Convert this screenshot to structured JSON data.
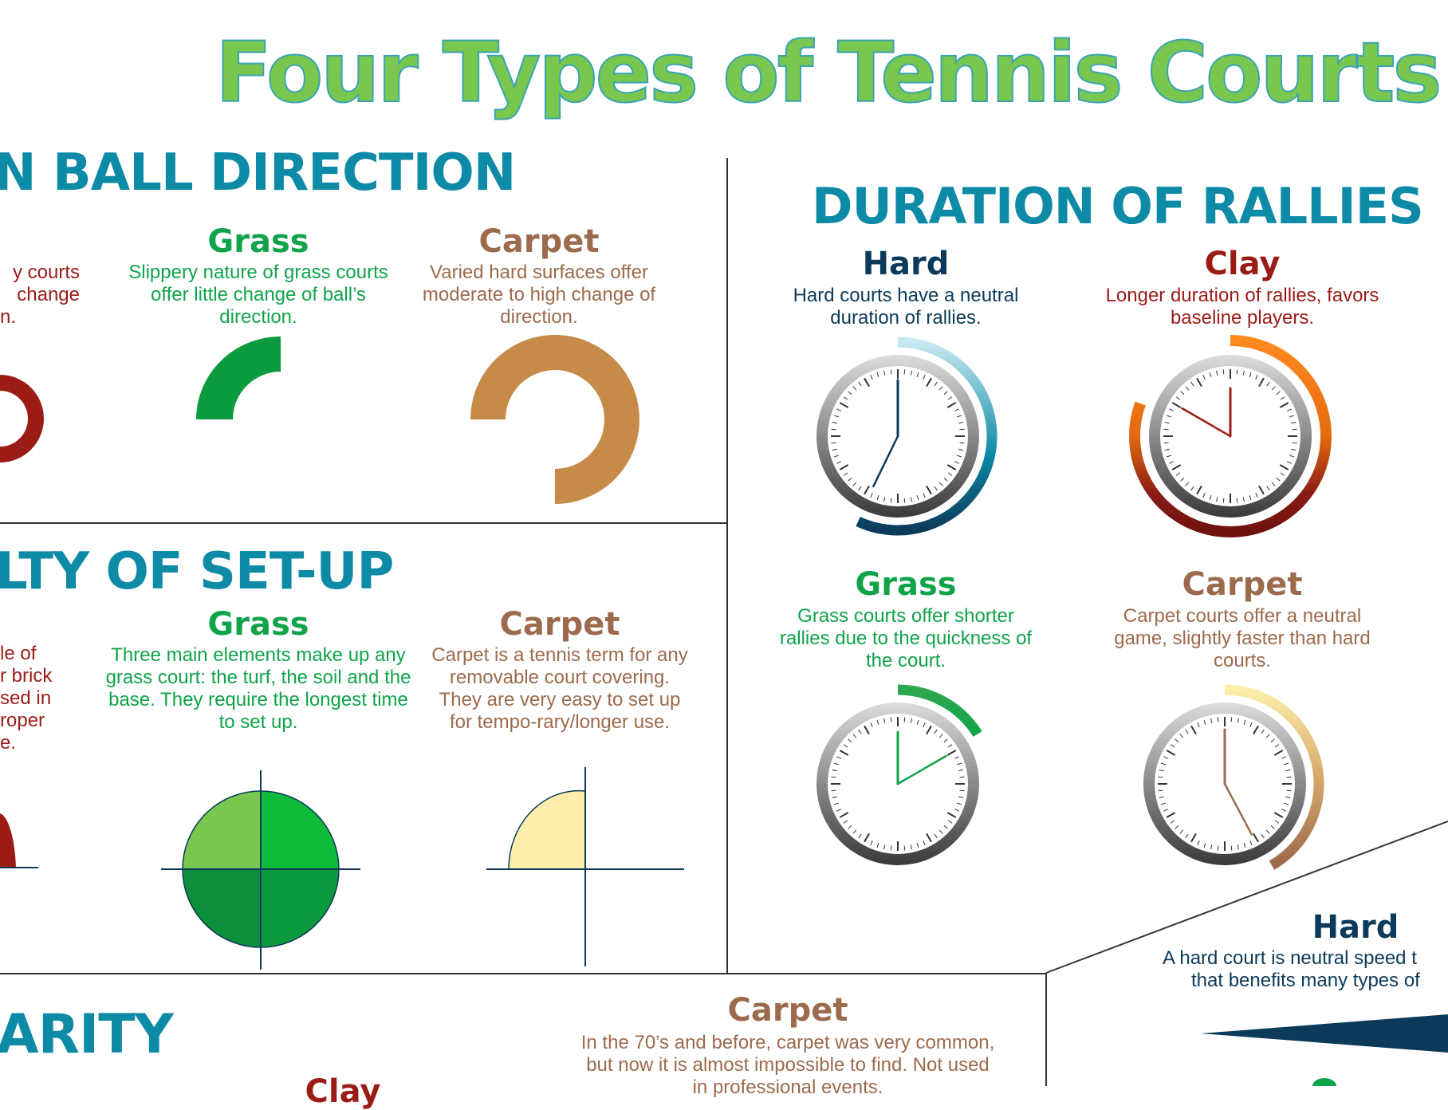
{
  "title": "Four Types of Tennis Courts",
  "ball_direction": {
    "heading": "N BALL DIRECTION",
    "clay_desc_fragments": [
      "y courts",
      "change",
      "n."
    ],
    "grass": {
      "label": "Grass",
      "desc": "Slippery nature of grass courts offer little change of ball’s direction."
    },
    "carpet": {
      "label": "Carpet",
      "desc": "Varied hard surfaces offer moderate to high change of direction."
    }
  },
  "setup": {
    "heading": "LTY OF SET-UP",
    "clay_desc_fragments": [
      "le of",
      "r brick",
      "sed in",
      "roper",
      "e."
    ],
    "grass": {
      "label": "Grass",
      "desc": "Three main elements make up any grass court: the turf, the soil and the base. They require the longest time to set up."
    },
    "carpet": {
      "label": "Carpet",
      "desc": "Carpet is a tennis term for any removable court covering. They are very easy to set up for tempo-rary/longer use."
    }
  },
  "rallies": {
    "heading": "DURATION OF RALLIES",
    "hard": {
      "label": "Hard",
      "desc": "Hard courts have a neutral duration of rallies."
    },
    "clay": {
      "label": "Clay",
      "desc": "Longer duration of rallies, favors baseline players."
    },
    "grass": {
      "label": "Grass",
      "desc": "Grass courts offer shorter rallies due to the quickness of the court."
    },
    "carpet": {
      "label": "Carpet",
      "desc": "Carpet courts offer a neutral game, slightly faster than hard courts."
    }
  },
  "popularity": {
    "heading": "ARITY",
    "clay_label_fragment": "Clay",
    "carpet": {
      "label": "Carpet",
      "desc": "In the 70’s and before, carpet was very common, but now it is almost impossible to find. Not used in professional events."
    }
  },
  "speed": {
    "hard": {
      "label": "Hard",
      "desc_line1": "A hard court is neutral speed t",
      "desc_line2": "that benefits many types of"
    }
  },
  "colors": {
    "title_green": "#79c74f",
    "heading_teal": "#0d8aa5",
    "grass_green": "#0fa44a",
    "carpet_brown": "#9c6a4c",
    "clay_red": "#9b1c16",
    "hard_navy": "#0c3a5a"
  }
}
